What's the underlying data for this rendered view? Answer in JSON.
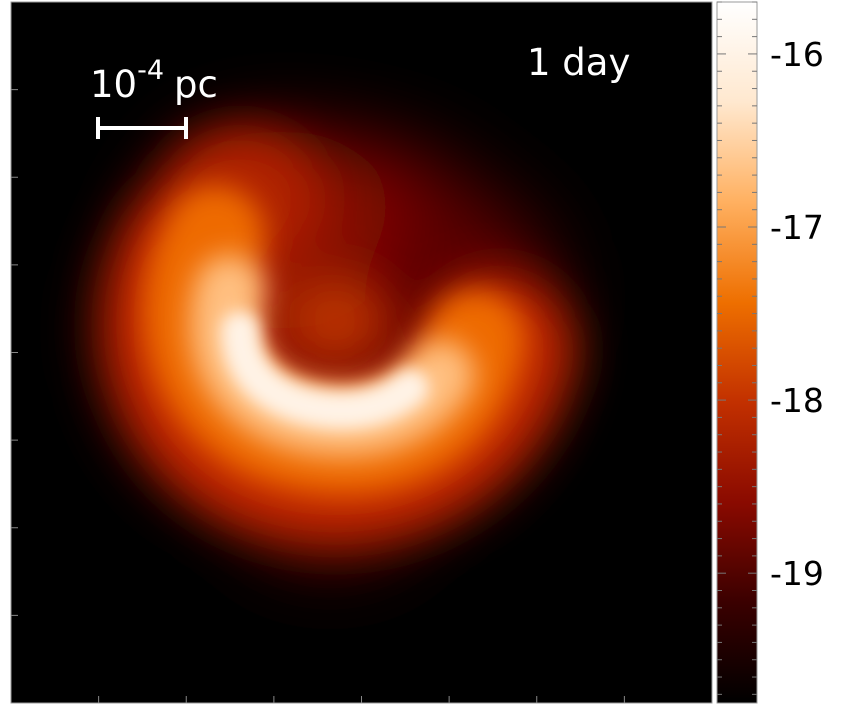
{
  "chart_data": {
    "type": "heatmap",
    "title": "",
    "time_label": "1 day",
    "scale_bar": {
      "base": "10",
      "exponent": "-4",
      "unit": "pc"
    },
    "colorbar": {
      "ticks": [
        "-16",
        "-17",
        "-18",
        "-19"
      ],
      "tick_values": [
        -16,
        -17,
        -18,
        -19
      ],
      "range": [
        -19.75,
        -15.7
      ],
      "colormap": [
        "#000000",
        "#3a0000",
        "#8a0a00",
        "#c23000",
        "#ee6f00",
        "#ffb060",
        "#ffe8cf",
        "#ffffff"
      ]
    },
    "axes": {
      "x_ticks_shown": true,
      "y_ticks_shown": true,
      "tick_labels_shown": false
    },
    "features": [
      {
        "name": "bright crescent arc",
        "peak": -15.8
      },
      {
        "name": "outer envelope",
        "peak": -17.6
      },
      {
        "name": "inner lobe",
        "peak": -17.3
      },
      {
        "name": "lower lobe",
        "peak": -18.2
      }
    ]
  }
}
